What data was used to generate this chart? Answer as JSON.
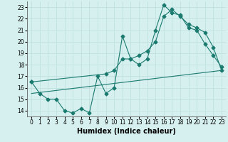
{
  "line1_x": [
    0,
    1,
    2,
    3,
    4,
    5,
    6,
    7,
    8,
    9,
    10,
    11,
    12,
    13,
    14,
    15,
    16,
    17,
    18,
    19,
    20,
    21,
    22,
    23
  ],
  "line1_y": [
    16.5,
    15.5,
    15.0,
    15.0,
    14.0,
    13.8,
    14.2,
    13.8,
    17.0,
    15.5,
    16.0,
    20.5,
    18.5,
    18.0,
    18.5,
    21.0,
    23.2,
    22.5,
    22.3,
    21.2,
    21.0,
    19.8,
    18.8,
    17.8
  ],
  "line2_x": [
    0,
    9,
    10,
    11,
    12,
    13,
    14,
    15,
    16,
    17,
    18,
    19,
    20,
    21,
    22,
    23
  ],
  "line2_y": [
    16.5,
    17.2,
    17.5,
    18.5,
    18.5,
    18.8,
    19.2,
    20.0,
    22.2,
    22.8,
    22.2,
    21.5,
    21.2,
    20.8,
    19.5,
    17.5
  ],
  "line3_x": [
    0,
    23
  ],
  "line3_y": [
    15.5,
    17.5
  ],
  "color": "#1a7a6e",
  "bg_color": "#d6f0f0",
  "grid_color": "#c0e0e0",
  "xlabel": "Humidex (Indice chaleur)",
  "xlim": [
    -0.5,
    23.5
  ],
  "ylim": [
    13.5,
    23.5
  ],
  "xticks": [
    0,
    1,
    2,
    3,
    4,
    5,
    6,
    7,
    8,
    9,
    10,
    11,
    12,
    13,
    14,
    15,
    16,
    17,
    18,
    19,
    20,
    21,
    22,
    23
  ],
  "yticks": [
    14,
    15,
    16,
    17,
    18,
    19,
    20,
    21,
    22,
    23
  ],
  "tick_fontsize": 5.5,
  "xlabel_fontsize": 7
}
